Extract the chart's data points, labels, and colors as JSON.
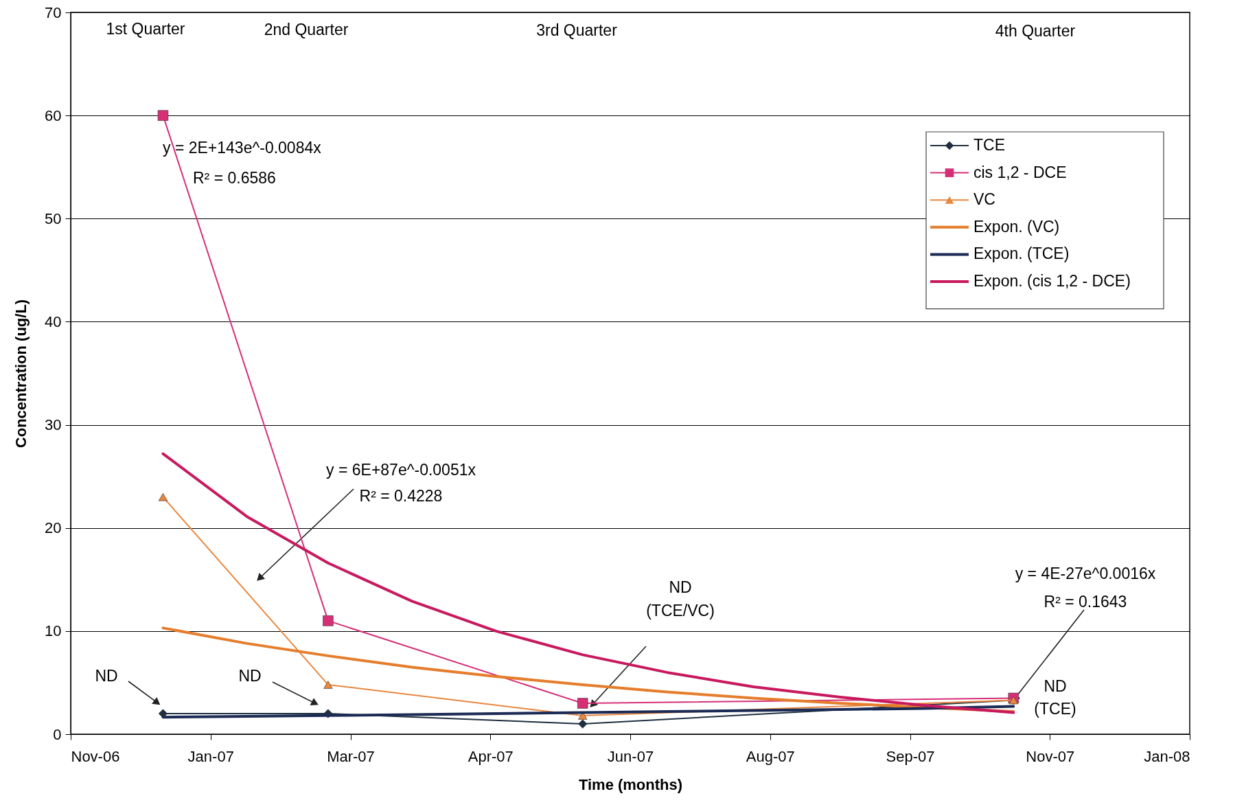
{
  "chart_data": {
    "type": "line",
    "xlabel": "Time (months)",
    "ylabel": "Concentration (ug/L)",
    "xlim": [
      "2006-11-30",
      "2008-01-04"
    ],
    "xticks": [
      {
        "value": "2006-11-30",
        "label": "Nov-06"
      },
      {
        "value": "2007-01-19",
        "label": "Jan-07"
      },
      {
        "value": "2007-03-10",
        "label": "Mar-07"
      },
      {
        "value": "2007-04-29",
        "label": "Apr-07"
      },
      {
        "value": "2007-06-18",
        "label": "Jun-07"
      },
      {
        "value": "2007-08-07",
        "label": "Aug-07"
      },
      {
        "value": "2007-09-26",
        "label": "Sep-07"
      },
      {
        "value": "2007-11-15",
        "label": "Nov-07"
      },
      {
        "value": "2008-01-04",
        "label": "Jan-08"
      }
    ],
    "ylim": [
      0,
      70
    ],
    "yticks": [
      0,
      10,
      20,
      30,
      40,
      50,
      60,
      70
    ],
    "grid": "y",
    "legend": "top right",
    "series": [
      {
        "name": "TCE",
        "color": "#1f2f3f",
        "marker": "diamond",
        "x": [
          "2007-01-02",
          "2007-03-02",
          "2007-06-01",
          "2007-11-02"
        ],
        "values": [
          2,
          2,
          1,
          3.3
        ]
      },
      {
        "name": "cis 1,2 - DCE",
        "color": "#d62f76",
        "marker": "square",
        "x": [
          "2007-01-02",
          "2007-03-02",
          "2007-06-01",
          "2007-11-02"
        ],
        "values": [
          60,
          11,
          3,
          3.5
        ]
      },
      {
        "name": "VC",
        "color": "#e8873e",
        "marker": "triangle",
        "x": [
          "2007-01-02",
          "2007-03-02",
          "2007-06-01",
          "2007-11-02"
        ],
        "values": [
          23,
          4.8,
          1.8,
          3.3
        ]
      },
      {
        "name": "Expon. (VC)",
        "color": "#e57d2c",
        "marker": "none",
        "x": [
          "2007-01-02",
          "2007-02-01",
          "2007-03-02",
          "2007-04-01",
          "2007-05-01",
          "2007-06-01",
          "2007-07-01",
          "2007-08-01",
          "2007-09-01",
          "2007-10-01",
          "2007-11-02"
        ],
        "values": [
          10.3,
          8.8,
          7.6,
          6.5,
          5.6,
          4.8,
          4.1,
          3.5,
          3.0,
          2.6,
          2.2
        ]
      },
      {
        "name": "Expon. (TCE)",
        "color": "#1c2b55",
        "marker": "none",
        "x": [
          "2007-01-02",
          "2007-02-01",
          "2007-03-02",
          "2007-04-01",
          "2007-05-01",
          "2007-06-01",
          "2007-07-01",
          "2007-08-01",
          "2007-09-01",
          "2007-10-01",
          "2007-11-02"
        ],
        "values": [
          1.65,
          1.73,
          1.81,
          1.9,
          2.0,
          2.1,
          2.2,
          2.3,
          2.4,
          2.5,
          2.7
        ]
      },
      {
        "name": "Expon. (cis 1,2 - DCE)",
        "color": "#c8195e",
        "marker": "none",
        "x": [
          "2007-01-02",
          "2007-02-01",
          "2007-03-02",
          "2007-04-01",
          "2007-05-01",
          "2007-06-01",
          "2007-07-01",
          "2007-08-01",
          "2007-09-01",
          "2007-10-01",
          "2007-11-02"
        ],
        "values": [
          27.2,
          21.1,
          16.6,
          12.9,
          10.0,
          7.7,
          6.0,
          4.6,
          3.6,
          2.8,
          2.1
        ]
      }
    ],
    "annotations": [
      "1st Quarter",
      "2nd Quarter",
      "3rd Quarter",
      "4th Quarter",
      "y = 2E+143e^-0.0084x\nR² = 0.6586",
      "y = 6E+87e^-0.0051x\nR² = 0.4228",
      {
        "text": "y = 4E-27e^0.0016x\nR² = 0.1643",
        "x": "2007-11-02",
        "y": 3.3
      },
      "ND",
      "ND",
      "ND\n(TCE/VC)",
      "ND\n(TCE)"
    ]
  }
}
